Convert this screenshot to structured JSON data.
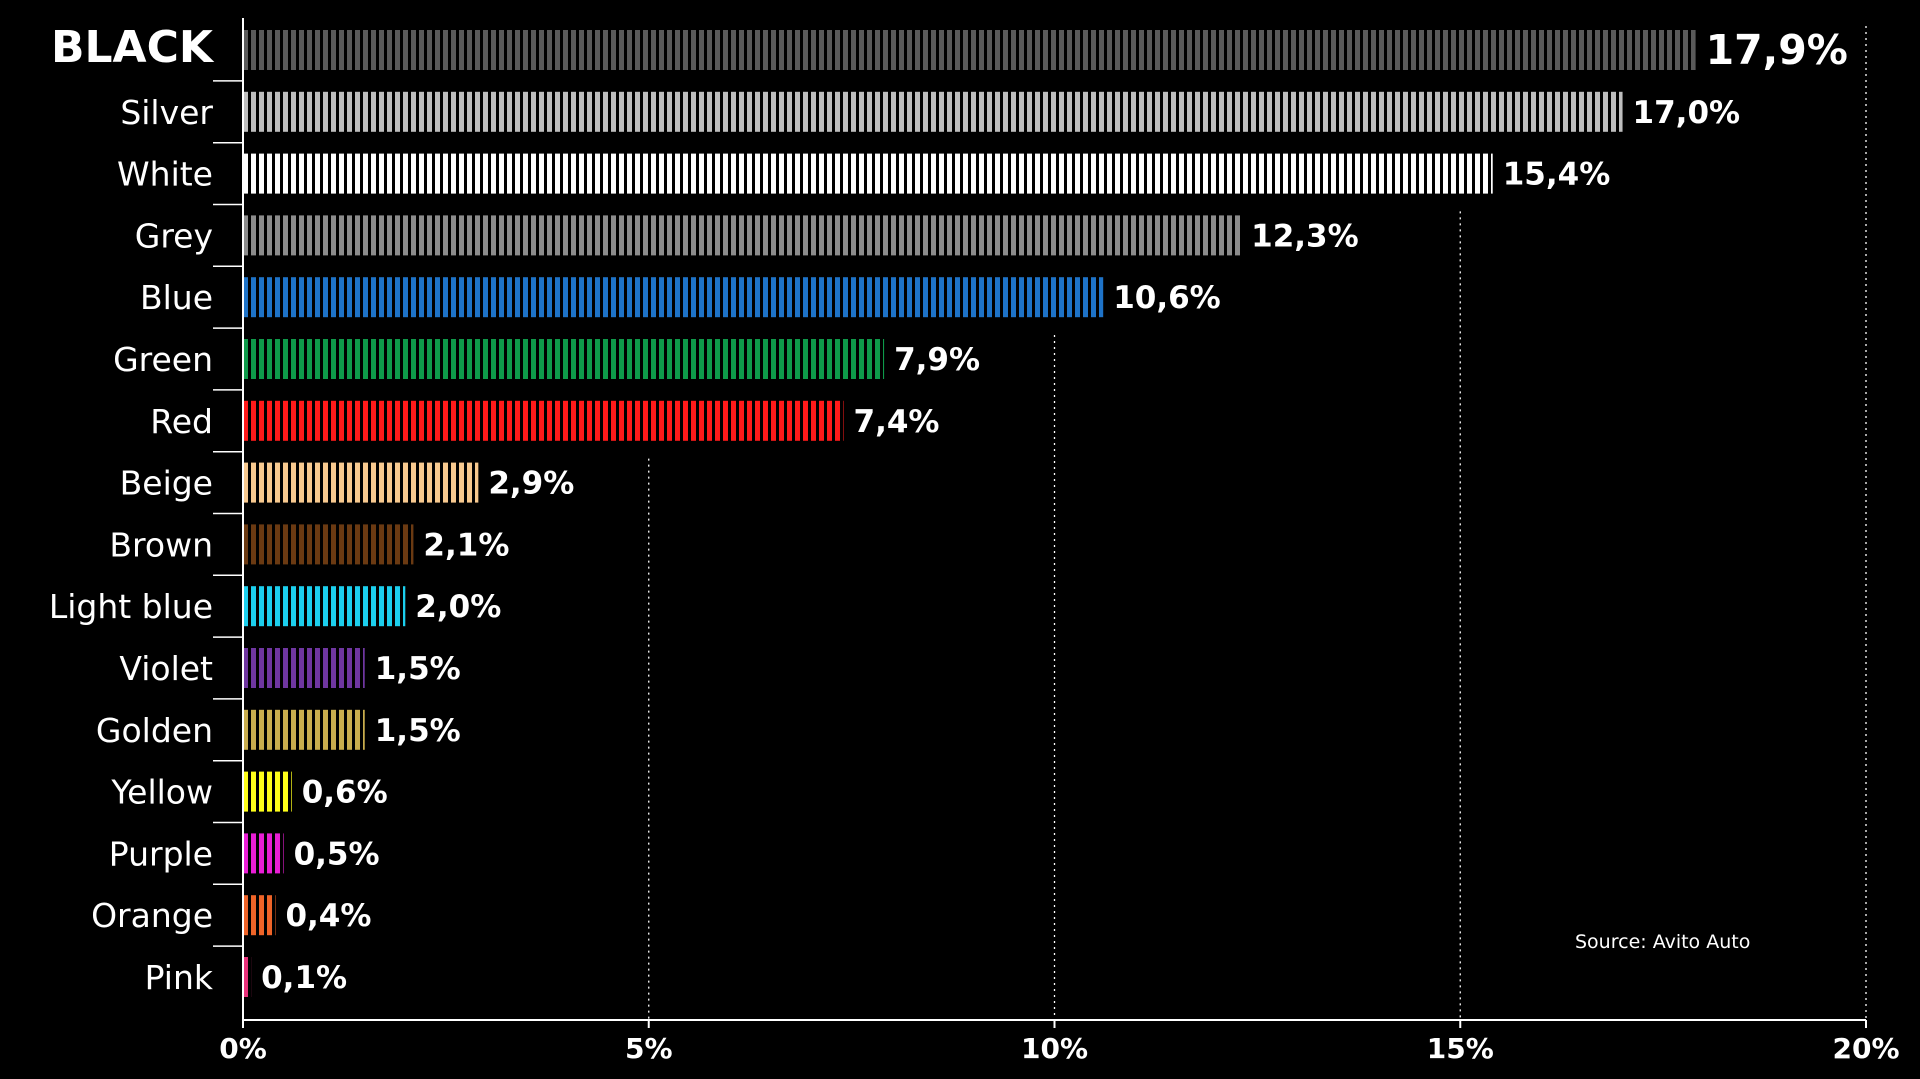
{
  "chart_data": {
    "type": "bar",
    "orientation": "horizontal",
    "categories": [
      "BLACK",
      "Silver",
      "White",
      "Grey",
      "Blue",
      "Green",
      "Red",
      "Beige",
      "Brown",
      "Light blue",
      "Violet",
      "Golden",
      "Yellow",
      "Purple",
      "Orange",
      "Pink"
    ],
    "values": [
      17.9,
      17.0,
      15.4,
      12.3,
      10.6,
      7.9,
      7.4,
      2.9,
      2.1,
      2.0,
      1.5,
      1.5,
      0.6,
      0.5,
      0.4,
      0.1
    ],
    "value_labels": [
      "17,9%",
      "17,0%",
      "15,4%",
      "12,3%",
      "10,6%",
      "7,9%",
      "7,4%",
      "2,9%",
      "2,1%",
      "2,0%",
      "1,5%",
      "1,5%",
      "0,6%",
      "0,5%",
      "0,4%",
      "0,1%"
    ],
    "colors": [
      "#5a5a5a",
      "#bdbdbd",
      "#ffffff",
      "#8c8c8c",
      "#1e73c8",
      "#0e9a4a",
      "#ff1a1a",
      "#f7c98f",
      "#6b3a12",
      "#1ccfee",
      "#6f36a0",
      "#c9ad4e",
      "#ffff1a",
      "#ea1ed6",
      "#ef6428",
      "#e8317a"
    ],
    "xlim": [
      0,
      20
    ],
    "xticks": [
      0,
      5,
      10,
      15,
      20
    ],
    "xtick_labels": [
      "0%",
      "5%",
      "10%",
      "15%",
      "20%"
    ],
    "xlabel": "",
    "ylabel": "",
    "grid": "vertical dotted",
    "highlight": "BLACK",
    "source": "Source: Avito Auto"
  }
}
